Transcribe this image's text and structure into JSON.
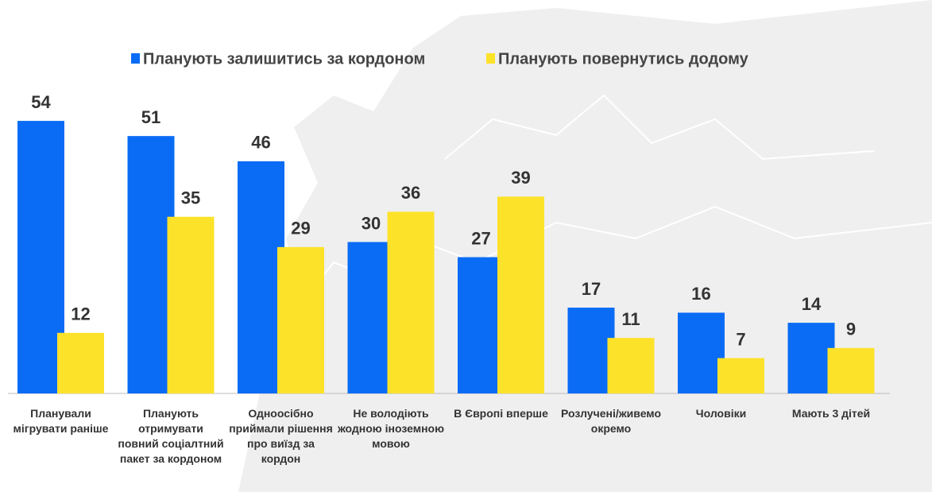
{
  "chart_data": {
    "type": "bar",
    "categories": [
      "Планували мігрувати раніше",
      "Планують отримувати повний соціалтний пакет за кордоном",
      "Одноосібно приймали рішення про виїзд за кордон",
      "Не володіють жодною іноземною мовою",
      "В Європі вперше",
      "Розлучені/живемо окремо",
      "Чоловіки",
      "Мають 3 дітей"
    ],
    "series": [
      {
        "name": "Планують залишитись за кордоном",
        "color": "#0a6cf5",
        "values": [
          54,
          51,
          46,
          30,
          27,
          17,
          16,
          14
        ]
      },
      {
        "name": "Планують повернутись додому",
        "color": "#fde22a",
        "values": [
          12,
          35,
          29,
          36,
          39,
          11,
          7,
          9
        ]
      }
    ],
    "legend": "top"
  }
}
